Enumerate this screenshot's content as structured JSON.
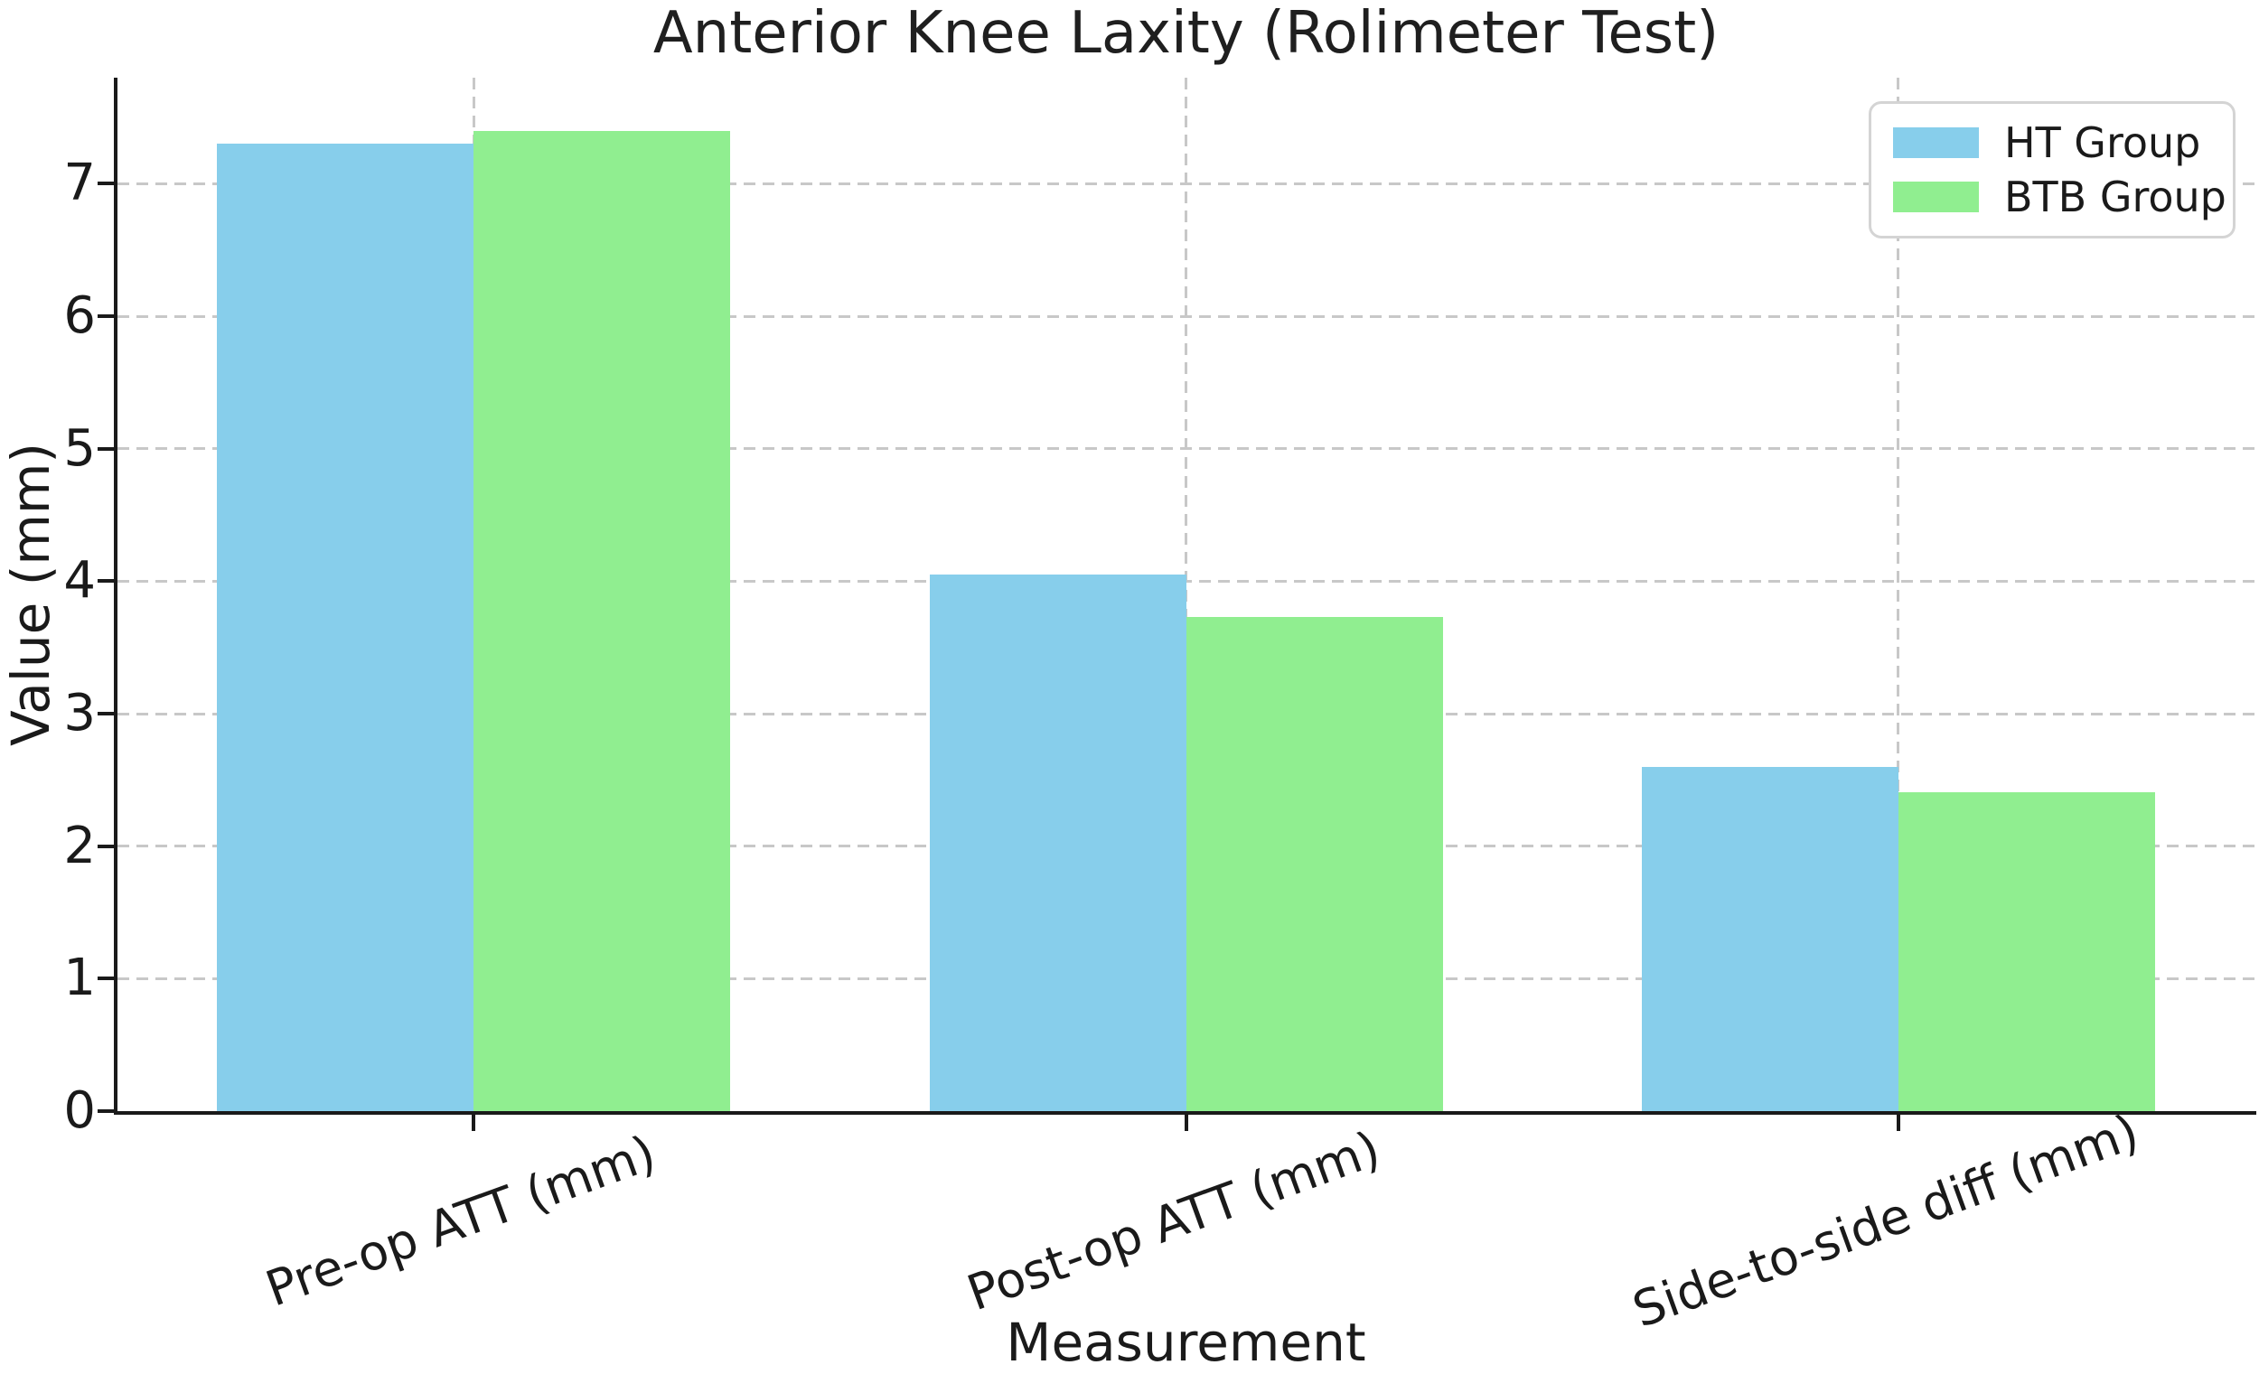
{
  "chart_data": {
    "type": "bar",
    "title": "Anterior Knee Laxity (Rolimeter Test)",
    "xlabel": "Measurement",
    "ylabel": "Value (mm)",
    "categories": [
      "Pre-op ATT (mm)",
      "Post-op ATT (mm)",
      "Side-to-side diff (mm)"
    ],
    "series": [
      {
        "name": "HT Group",
        "color": "#87CEEB",
        "values": [
          7.3,
          4.05,
          2.6
        ]
      },
      {
        "name": "BTB Group",
        "color": "#90EE90",
        "values": [
          7.4,
          3.73,
          2.41
        ]
      }
    ],
    "ylim": [
      0,
      7.8
    ],
    "yticks": [
      "0",
      "1",
      "2",
      "3",
      "4",
      "5",
      "6",
      "7"
    ],
    "grid": true,
    "grid_style": "dashed",
    "legend_position": "upper right",
    "x_tick_rotation_deg": 20,
    "bar_width_fraction": 0.36,
    "colors": {
      "grid": "#c8c8c8",
      "axis": "#1a1a1a",
      "text": "#1a1a1a",
      "legend_border": "#d4d4d4",
      "background": "#ffffff"
    }
  }
}
